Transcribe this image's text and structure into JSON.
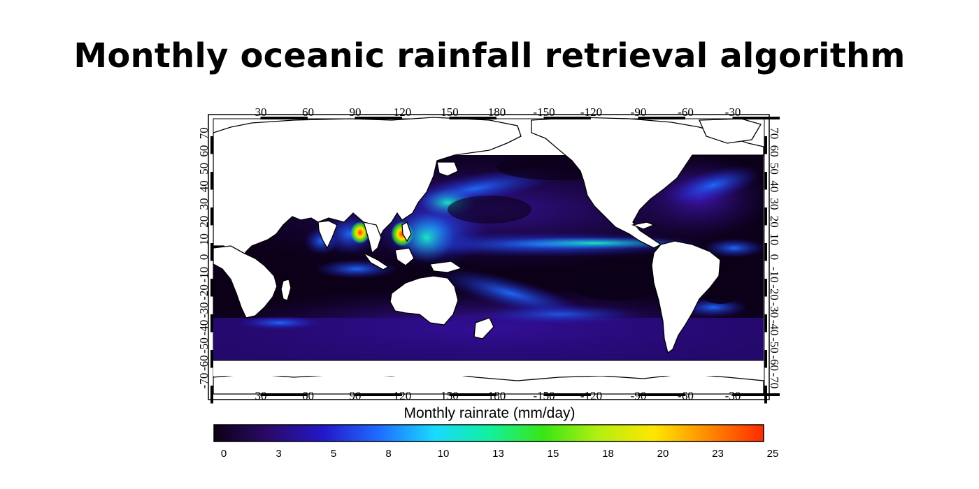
{
  "title": "Monthly oceanic rainfall retrieval algorithm",
  "map": {
    "top_lon_labels": [
      "30",
      "60",
      "90",
      "120",
      "150",
      "180",
      "-150",
      "-120",
      "-90",
      "-60",
      "-30"
    ],
    "bottom_lon_labels": [
      "30",
      "60",
      "90",
      "120",
      "150",
      "180",
      "-150",
      "-120",
      "-90",
      "-60",
      "-30"
    ],
    "lat_labels": [
      "-70",
      "-60",
      "-50",
      "-40",
      "-30",
      "-20",
      "-10",
      "0",
      "10",
      "20",
      "30",
      "40",
      "50",
      "60",
      "70"
    ],
    "colors": {
      "ocean_dark": "#0b0018",
      "ocean_purple": "#2a0a6e",
      "land": "#ffffff",
      "coast": "#000000"
    }
  },
  "colorbar": {
    "title": "Monthly rainrate (mm/day)",
    "ticks": [
      "0",
      "3",
      "5",
      "8",
      "10",
      "13",
      "15",
      "18",
      "20",
      "23",
      "25"
    ],
    "min": 0,
    "max": 25,
    "stops": [
      "#0d0015",
      "#2b0a6a",
      "#2318c8",
      "#1f6cff",
      "#19d9ff",
      "#12f0a0",
      "#39e615",
      "#b5ee12",
      "#ffe600",
      "#ff8a00",
      "#ff2a00"
    ]
  }
}
